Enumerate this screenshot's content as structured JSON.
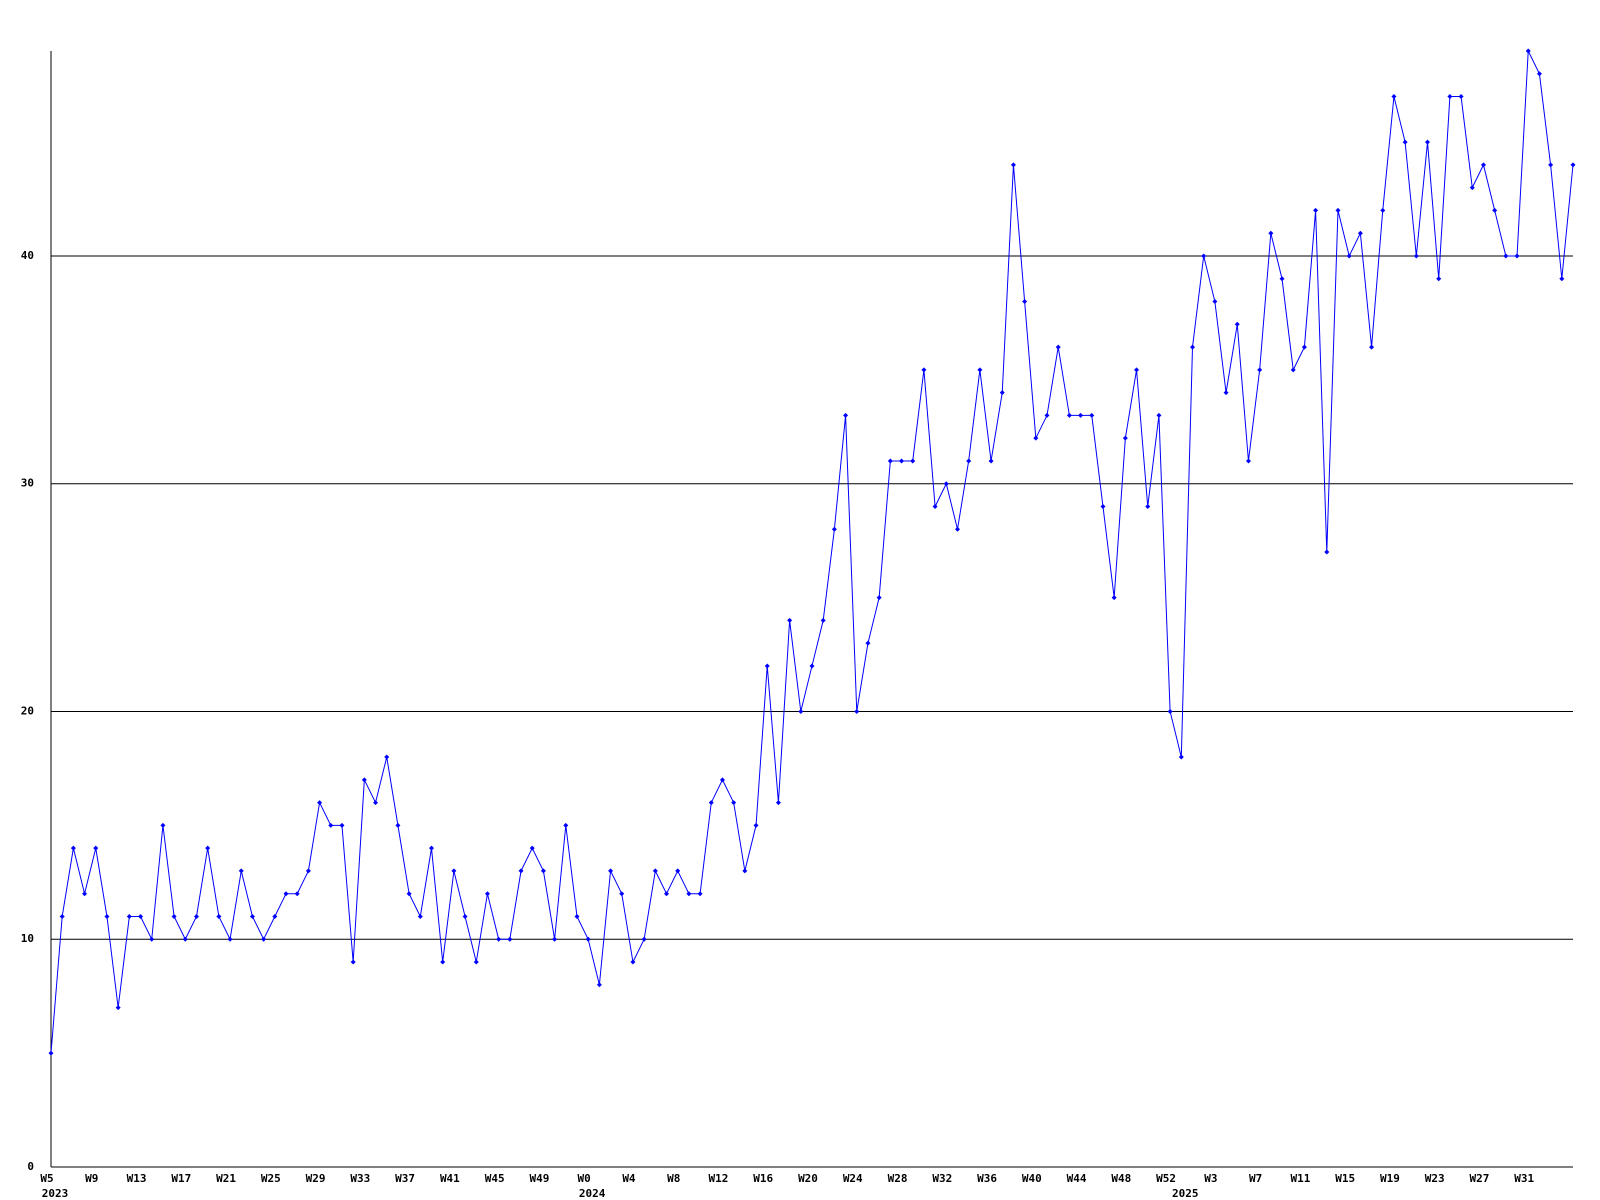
{
  "chart_data": {
    "type": "line",
    "categories": [
      "W5",
      null,
      null,
      null,
      "W9",
      null,
      null,
      null,
      "W13",
      null,
      null,
      null,
      "W17",
      null,
      null,
      null,
      "W21",
      null,
      null,
      null,
      "W25",
      null,
      null,
      null,
      "W29",
      null,
      null,
      null,
      "W33",
      null,
      null,
      null,
      "W37",
      null,
      null,
      null,
      "W41",
      null,
      null,
      null,
      "W45",
      null,
      null,
      null,
      "W49",
      null,
      null,
      null,
      "W0",
      null,
      null,
      null,
      "W4",
      null,
      null,
      null,
      "W8",
      null,
      null,
      null,
      "W12",
      null,
      null,
      null,
      "W16",
      null,
      null,
      null,
      "W20",
      null,
      null,
      null,
      "W24",
      null,
      null,
      null,
      "W28",
      null,
      null,
      null,
      "W32",
      null,
      null,
      null,
      "W36",
      null,
      null,
      null,
      "W40",
      null,
      null,
      null,
      "W44",
      null,
      null,
      null,
      "W48",
      null,
      null,
      null,
      "W52",
      null,
      null,
      null,
      "W3",
      null,
      null,
      null,
      "W7",
      null,
      null,
      null,
      "W11",
      null,
      null,
      null,
      "W15",
      null,
      null,
      null,
      "W19",
      null,
      null,
      null,
      "W23",
      null,
      null,
      null,
      "W27",
      null,
      null,
      null,
      "W31",
      null,
      null,
      null,
      null
    ],
    "category_years": [
      "2023",
      null,
      null,
      null,
      null,
      null,
      null,
      null,
      null,
      null,
      null,
      null,
      null,
      null,
      null,
      null,
      null,
      null,
      null,
      null,
      null,
      null,
      null,
      null,
      null,
      null,
      null,
      null,
      null,
      null,
      null,
      null,
      null,
      null,
      null,
      null,
      null,
      null,
      null,
      null,
      null,
      null,
      null,
      null,
      null,
      null,
      null,
      null,
      "2024",
      null,
      null,
      null,
      null,
      null,
      null,
      null,
      null,
      null,
      null,
      null,
      null,
      null,
      null,
      null,
      null,
      null,
      null,
      null,
      null,
      null,
      null,
      null,
      null,
      null,
      null,
      null,
      null,
      null,
      null,
      null,
      null,
      null,
      null,
      null,
      null,
      null,
      null,
      null,
      null,
      null,
      null,
      null,
      null,
      null,
      null,
      null,
      null,
      null,
      null,
      null,
      null,
      "2025",
      null,
      null,
      null,
      null,
      null,
      null,
      null,
      null,
      null,
      null,
      null,
      null,
      null,
      null,
      null,
      null,
      null,
      null,
      null,
      null,
      null,
      null,
      null,
      null,
      null,
      null,
      null,
      null,
      null,
      null,
      null,
      null,
      null,
      null
    ],
    "series": [
      {
        "color": "#0000ff",
        "values": [
          5,
          11,
          14,
          12,
          14,
          11,
          7,
          11,
          11,
          10,
          15,
          11,
          10,
          11,
          14,
          11,
          10,
          13,
          11,
          10,
          11,
          12,
          12,
          13,
          16,
          15,
          15,
          9,
          17,
          16,
          18,
          15,
          12,
          11,
          14,
          9,
          13,
          11,
          9,
          12,
          10,
          10,
          13,
          14,
          13,
          10,
          15,
          11,
          10,
          8,
          13,
          12,
          9,
          10,
          13,
          12,
          13,
          12,
          12,
          16,
          17,
          16,
          13,
          15,
          22,
          16,
          24,
          20,
          22,
          24,
          28,
          33,
          20,
          23,
          25,
          31,
          31,
          31,
          35,
          29,
          30,
          28,
          31,
          35,
          31,
          34,
          44,
          38,
          32,
          33,
          36,
          33,
          33,
          33,
          29,
          25,
          32,
          35,
          29,
          33,
          20,
          18,
          36,
          40,
          38,
          34,
          37,
          31,
          35,
          41,
          39,
          35,
          36,
          42,
          27,
          42,
          40,
          41,
          36,
          42,
          47,
          45,
          40,
          45,
          39,
          47,
          47,
          43,
          44,
          42,
          40,
          40,
          49,
          48,
          44,
          39,
          44
        ]
      }
    ],
    "ylim": [
      0,
      49
    ],
    "yticks": [
      0,
      10,
      20,
      30,
      40
    ],
    "grid": true
  }
}
